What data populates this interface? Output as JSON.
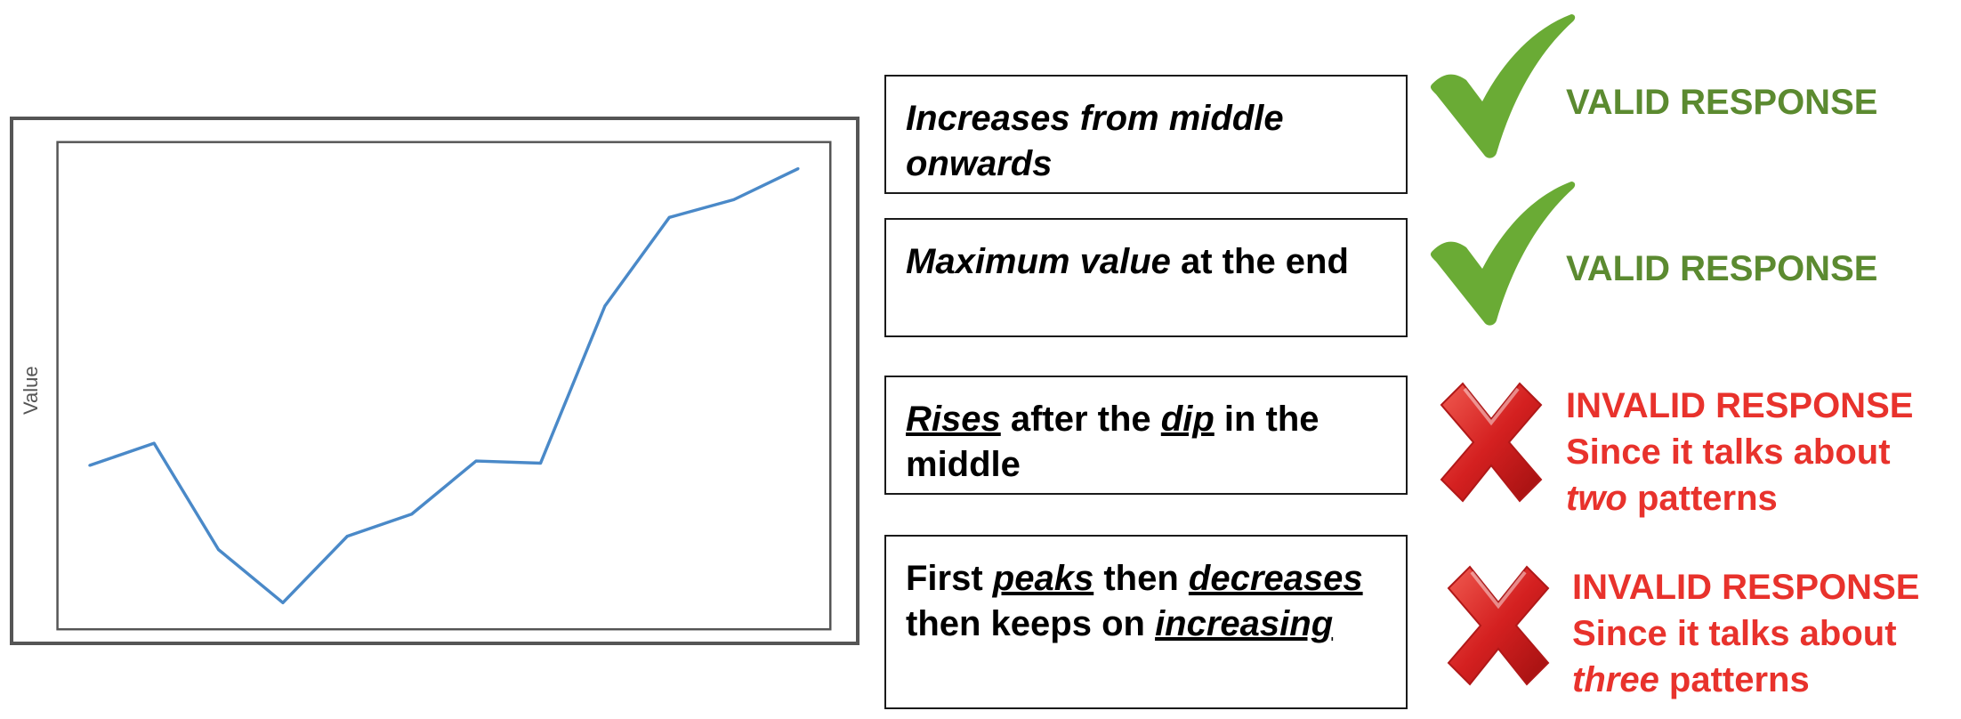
{
  "chart_data": {
    "type": "line",
    "title": "",
    "xlabel": "",
    "ylabel": "Value",
    "x": [
      1,
      2,
      3,
      4,
      5,
      6,
      7,
      8,
      9,
      10,
      11,
      12
    ],
    "series": [
      {
        "values": [
          37.0,
          42.0,
          18.0,
          6.0,
          21.0,
          26.0,
          38.0,
          37.5,
          73.0,
          93.0,
          97.0,
          104.0
        ]
      }
    ],
    "ylim": [
      0,
      110
    ],
    "xlim": [
      0.5,
      12.5
    ],
    "grid": false,
    "colors": {
      "line": "#4a89c8",
      "plot_border": "#555555"
    }
  },
  "descriptions": [
    {
      "parts": [
        {
          "text": "Increases from middle onwards",
          "italic": true,
          "underline": false
        }
      ]
    },
    {
      "parts": [
        {
          "text": "Maximum value",
          "italic": true,
          "underline": false
        },
        {
          "text": " at the end",
          "italic": false,
          "underline": false
        }
      ]
    },
    {
      "parts": [
        {
          "text": "Rises",
          "italic": true,
          "underline": true
        },
        {
          "text": " after the ",
          "italic": false,
          "underline": false
        },
        {
          "text": "dip",
          "italic": true,
          "underline": true
        },
        {
          "text": " in the middle",
          "italic": false,
          "underline": false
        }
      ]
    },
    {
      "parts": [
        {
          "text": "First ",
          "italic": false,
          "underline": false
        },
        {
          "text": "peaks",
          "italic": true,
          "underline": true
        },
        {
          "text": " then ",
          "italic": false,
          "underline": false
        },
        {
          "text": "decreases",
          "italic": true,
          "underline": true
        },
        {
          "text": " then keeps on ",
          "italic": false,
          "underline": false
        },
        {
          "text": "increasing",
          "italic": true,
          "underline": true
        }
      ]
    }
  ],
  "verdicts": [
    {
      "icon": "checkmark-icon",
      "label": "VALID RESPONSE"
    },
    {
      "icon": "checkmark-icon",
      "label": "VALID RESPONSE"
    },
    {
      "icon": "cross-icon",
      "label": "INVALID RESPONSE",
      "reason_prefix": "Since it talks about",
      "reason_emph": "two",
      "reason_suffix": " patterns"
    },
    {
      "icon": "cross-icon",
      "label": "INVALID RESPONSE",
      "reason_prefix": "Since it talks about",
      "reason_emph": "three",
      "reason_suffix": " patterns"
    }
  ],
  "colors": {
    "valid": "#5b8a30",
    "check": "#6aab35",
    "invalid": "#e8322c",
    "cross": "#d42020"
  }
}
